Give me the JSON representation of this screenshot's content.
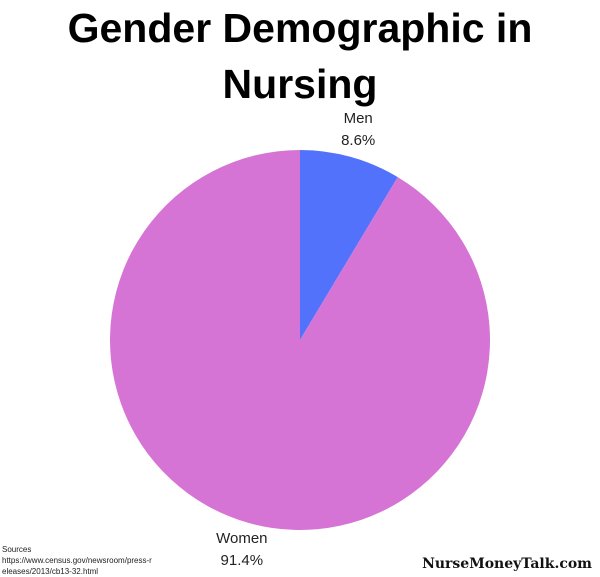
{
  "chart_data": {
    "type": "pie",
    "title": "Gender Demographic in Nursing",
    "categories": [
      "Men",
      "Women"
    ],
    "values": [
      8.6,
      91.4
    ],
    "value_labels": [
      "8.6%",
      "91.4%"
    ],
    "colors": [
      "#5372fb",
      "#d674d6"
    ],
    "annotations": [
      "Sources",
      "https://www.census.gov/newsroom/press-releases/2013/cb13-32.html",
      "NurseMoneyTalk.com"
    ]
  }
}
